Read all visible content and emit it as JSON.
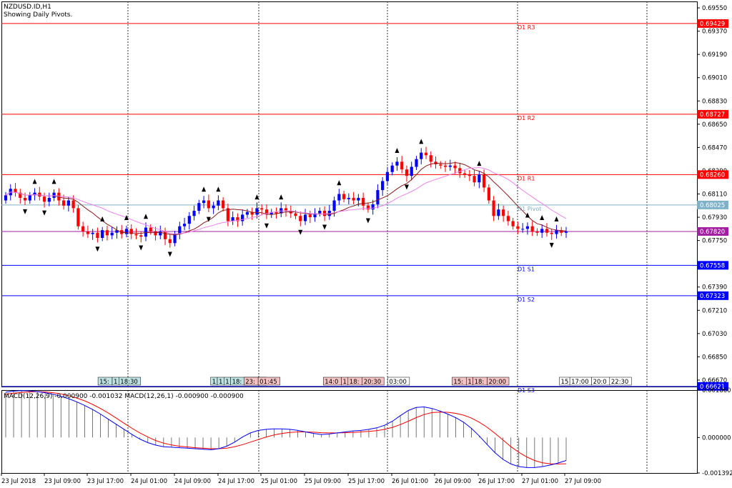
{
  "window": {
    "symbol_title": "NZDUSD.ID,H1",
    "subtitle": "Showing Daily Pivots."
  },
  "colors": {
    "resistance": "#ff0000",
    "support": "#0000ff",
    "pivot": "#7fb2c8",
    "current": "#a020a0",
    "bull_candle": "#0000ff",
    "bear_candle": "#ff0000",
    "ma_fast": "#8b1a1a",
    "ma_slow": "#ee82ee",
    "macd_main": "#ff0000",
    "macd_signal": "#0000ff",
    "grid": "#000000"
  },
  "chart_data": [
    {
      "type": "candlestick",
      "title": "NZDUSD.ID,H1",
      "subtitle": "Showing Daily Pivots.",
      "ylim": [
        0.6662,
        0.696
      ],
      "y_ticks": [
        "0.69550",
        "0.69370",
        "0.69190",
        "0.69010",
        "0.68830",
        "0.68650",
        "0.68470",
        "0.68290",
        "0.68110",
        "0.67930",
        "0.67750",
        "0.67570",
        "0.67390",
        "0.67210",
        "0.67030",
        "0.66850",
        "0.66670"
      ],
      "x_ticks": [
        "23 Jul 2018",
        "23 Jul 09:00",
        "23 Jul 17:00",
        "24 Jul 01:00",
        "24 Jul 09:00",
        "24 Jul 17:00",
        "25 Jul 01:00",
        "25 Jul 09:00",
        "25 Jul 17:00",
        "26 Jul 01:00",
        "26 Jul 09:00",
        "26 Jul 17:00",
        "27 Jul 01:00",
        "27 Jul 09:00"
      ],
      "grid": "vertical dotted at day separators",
      "pivot_levels": [
        {
          "name": "D1 R3",
          "value": 0.69429,
          "tag": "0.69429",
          "kind": "resistance"
        },
        {
          "name": "D1 R2",
          "value": 0.68727,
          "tag": "0.68727",
          "kind": "resistance"
        },
        {
          "name": "D1 R1",
          "value": 0.6826,
          "tag": "0.68260",
          "kind": "resistance"
        },
        {
          "name": "D1 Pivot",
          "value": 0.68025,
          "tag": "0.68025",
          "kind": "pivot"
        },
        {
          "name": "",
          "value": 0.6782,
          "tag": "0.67820",
          "kind": "current"
        },
        {
          "name": "D1 S1",
          "value": 0.67558,
          "tag": "0.67558",
          "kind": "support"
        },
        {
          "name": "D1 S2",
          "value": 0.67323,
          "tag": "0.67323",
          "kind": "support"
        },
        {
          "name": "D1 S3",
          "value": 0.66621,
          "tag": "0.66621",
          "kind": "support"
        }
      ],
      "candle_close": [
        0.681,
        0.6815,
        0.6812,
        0.6808,
        0.6806,
        0.681,
        0.6812,
        0.6809,
        0.6805,
        0.6808,
        0.6812,
        0.6806,
        0.6802,
        0.6806,
        0.68,
        0.6786,
        0.6782,
        0.678,
        0.6781,
        0.6777,
        0.6783,
        0.6779,
        0.6781,
        0.6783,
        0.678,
        0.6784,
        0.678,
        0.6779,
        0.6778,
        0.6785,
        0.6782,
        0.6779,
        0.6782,
        0.6776,
        0.6773,
        0.678,
        0.6786,
        0.6788,
        0.6794,
        0.6798,
        0.6804,
        0.6806,
        0.68,
        0.6802,
        0.6806,
        0.68,
        0.679,
        0.6793,
        0.679,
        0.6795,
        0.6797,
        0.6795,
        0.68,
        0.6799,
        0.6795,
        0.6797,
        0.6796,
        0.68,
        0.6798,
        0.6796,
        0.6794,
        0.679,
        0.6795,
        0.6793,
        0.6796,
        0.6798,
        0.6794,
        0.6798,
        0.6806,
        0.6811,
        0.6807,
        0.6808,
        0.6806,
        0.6808,
        0.6802,
        0.6799,
        0.6803,
        0.6814,
        0.6821,
        0.6828,
        0.6833,
        0.6836,
        0.683,
        0.6825,
        0.6832,
        0.6838,
        0.6843,
        0.6841,
        0.6836,
        0.6834,
        0.6833,
        0.6832,
        0.6833,
        0.6831,
        0.6827,
        0.6826,
        0.6825,
        0.682,
        0.6826,
        0.6816,
        0.6806,
        0.6794,
        0.6799,
        0.6794,
        0.679,
        0.6786,
        0.6784,
        0.6784,
        0.6786,
        0.6782,
        0.6781,
        0.6784,
        0.6781,
        0.678,
        0.6783,
        0.6781,
        0.6782
      ],
      "series": [
        {
          "name": "MA fast",
          "color": "#8b1a1a"
        },
        {
          "name": "MA slow",
          "color": "#ee82ee"
        }
      ],
      "event_labels": [
        {
          "at": 0.18,
          "parts": [
            "15:",
            "1",
            "18:30"
          ],
          "color": "#bfe3e3"
        },
        {
          "at": 0.39,
          "parts": [
            "1",
            "1",
            "1",
            "18:",
            "20:00"
          ],
          "color": "#bfe3e3"
        },
        {
          "at": 0.452,
          "parts": [
            "23:",
            "01:45"
          ],
          "color": "#f4c2c2"
        },
        {
          "at": 0.6,
          "parts": [
            "14:0",
            "1",
            "18:",
            "20:30"
          ],
          "color": "#f4c2c2"
        },
        {
          "at": 0.72,
          "parts": [
            "03:00"
          ],
          "color": "#ffffff"
        },
        {
          "at": 0.84,
          "parts": [
            "15:",
            "1",
            "18:",
            "20:00"
          ],
          "color": "#f4c2c2"
        },
        {
          "at": 1.04,
          "parts": [
            "15",
            "17:00",
            "20:0",
            "22:30"
          ],
          "color": "#ffffff"
        }
      ]
    },
    {
      "type": "macd",
      "title": "MACD(12,26,9) -0.000900 -0.001032 MACD(12,26,1) -0.000900 -0.000900",
      "ylim": [
        -0.001392,
        0.00186
      ],
      "y_ticks": [
        "0.001860",
        "0.000000",
        "-0.001392"
      ],
      "histogram": [
        0.00178,
        0.00182,
        0.00184,
        0.00183,
        0.0018,
        0.00176,
        0.0017,
        0.00162,
        0.00152,
        0.0014,
        0.00126,
        0.0011,
        0.00092,
        0.00072,
        0.00052,
        0.00032,
        0.00012,
        -6e-05,
        -0.0002,
        -0.0003,
        -0.00036,
        -0.00038,
        -0.0004,
        -0.00042,
        -0.00044,
        -0.00046,
        -0.00048,
        -0.00044,
        -0.00034,
        -0.00018,
        2e-05,
        0.00018,
        0.00028,
        0.00032,
        0.00034,
        0.00034,
        0.00032,
        0.00028,
        0.00022,
        0.00016,
        0.00012,
        0.00014,
        0.00018,
        0.00022,
        0.00026,
        0.00028,
        0.00032,
        0.00038,
        0.00048,
        0.00064,
        0.00086,
        0.00106,
        0.00118,
        0.0012,
        0.00114,
        0.00104,
        0.00092,
        0.00078,
        0.0006,
        0.00036,
        6e-05,
        -0.00028,
        -0.0006,
        -0.00086,
        -0.00104,
        -0.00114,
        -0.00118,
        -0.00118,
        -0.00114,
        -0.00108,
        -0.001,
        -0.0009
      ],
      "signal": [
        0.0017,
        0.00174,
        0.00177,
        0.00179,
        0.0018,
        0.00179,
        0.00176,
        0.00171,
        0.00164,
        0.00155,
        0.00144,
        0.0013,
        0.00114,
        0.00096,
        0.00076,
        0.00056,
        0.00036,
        0.00018,
        2e-05,
        -0.00012,
        -0.00022,
        -0.00029,
        -0.00034,
        -0.00037,
        -0.0004,
        -0.00042,
        -0.00044,
        -0.00044,
        -0.00042,
        -0.00036,
        -0.00028,
        -0.00018,
        -8e-05,
        2e-05,
        0.0001,
        0.00016,
        0.0002,
        0.00022,
        0.00022,
        0.00021,
        0.00019,
        0.00018,
        0.00018,
        0.00019,
        0.0002,
        0.00022,
        0.00024,
        0.00027,
        0.00032,
        0.0004,
        0.00051,
        0.00064,
        0.00078,
        0.0009,
        0.00098,
        0.001,
        0.00099,
        0.00095,
        0.00088,
        0.00076,
        0.0006,
        0.0004,
        0.00016,
        -0.0001,
        -0.00036,
        -0.00058,
        -0.00076,
        -0.0009,
        -0.00099,
        -0.00103,
        -0.00104,
        -0.00103
      ]
    }
  ]
}
